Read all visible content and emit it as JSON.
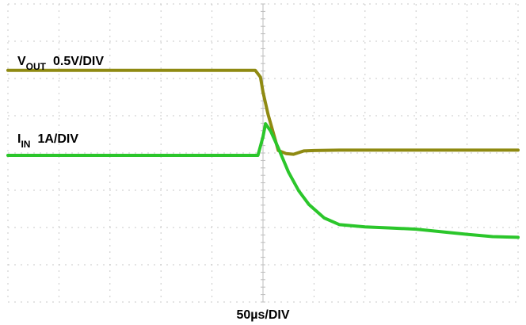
{
  "chart_data": {
    "type": "line",
    "xlabel": "50µs/DIV",
    "grid": true,
    "divisions": {
      "x": 10,
      "y": 8
    },
    "series": [
      {
        "label_main": "V",
        "label_sub": "OUT",
        "label_scale": "0.5V/DIV",
        "color": "#8f8a12",
        "points": [
          [
            -5.0,
            2.28
          ],
          [
            -0.15,
            2.28
          ],
          [
            -0.05,
            2.1
          ],
          [
            0.0,
            1.7
          ],
          [
            0.1,
            1.1
          ],
          [
            0.3,
            0.13
          ],
          [
            0.45,
            0.05
          ],
          [
            0.6,
            0.03
          ],
          [
            0.8,
            0.12
          ],
          [
            1.0,
            0.13
          ],
          [
            1.5,
            0.14
          ],
          [
            2.0,
            0.14
          ],
          [
            3.0,
            0.14
          ],
          [
            4.0,
            0.14
          ],
          [
            5.0,
            0.14
          ]
        ]
      },
      {
        "label_main": "I",
        "label_sub": "IN",
        "label_scale": "1A/DIV",
        "color": "#2bc62b",
        "points": [
          [
            -5.0,
            0.0
          ],
          [
            -0.1,
            0.0
          ],
          [
            0.0,
            0.5
          ],
          [
            0.05,
            0.85
          ],
          [
            0.15,
            0.65
          ],
          [
            0.3,
            0.2
          ],
          [
            0.5,
            -0.45
          ],
          [
            0.7,
            -0.95
          ],
          [
            0.9,
            -1.32
          ],
          [
            1.2,
            -1.68
          ],
          [
            1.5,
            -1.86
          ],
          [
            2.0,
            -1.92
          ],
          [
            2.5,
            -1.95
          ],
          [
            3.0,
            -1.98
          ],
          [
            3.5,
            -2.05
          ],
          [
            4.0,
            -2.12
          ],
          [
            4.5,
            -2.18
          ],
          [
            5.0,
            -2.2
          ]
        ]
      }
    ]
  }
}
